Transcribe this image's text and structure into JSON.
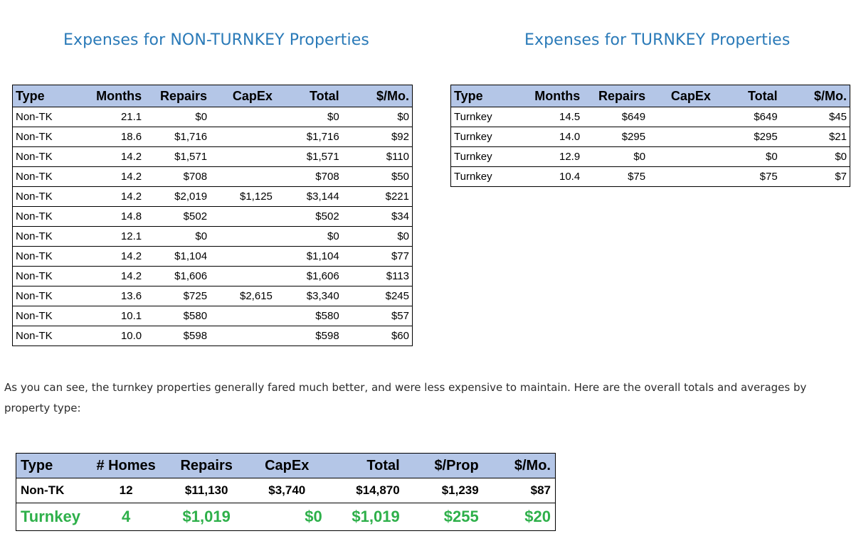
{
  "non_turnkey": {
    "heading": "Expenses for NON-TURNKEY Properties",
    "columns": [
      "Type",
      "Months",
      "Repairs",
      "CapEx",
      "Total",
      "$/Mo."
    ],
    "rows": [
      [
        "Non-TK",
        "21.1",
        "$0",
        "",
        "$0",
        "$0"
      ],
      [
        "Non-TK",
        "18.6",
        "$1,716",
        "",
        "$1,716",
        "$92"
      ],
      [
        "Non-TK",
        "14.2",
        "$1,571",
        "",
        "$1,571",
        "$110"
      ],
      [
        "Non-TK",
        "14.2",
        "$708",
        "",
        "$708",
        "$50"
      ],
      [
        "Non-TK",
        "14.2",
        "$2,019",
        "$1,125",
        "$3,144",
        "$221"
      ],
      [
        "Non-TK",
        "14.8",
        "$502",
        "",
        "$502",
        "$34"
      ],
      [
        "Non-TK",
        "12.1",
        "$0",
        "",
        "$0",
        "$0"
      ],
      [
        "Non-TK",
        "14.2",
        "$1,104",
        "",
        "$1,104",
        "$77"
      ],
      [
        "Non-TK",
        "14.2",
        "$1,606",
        "",
        "$1,606",
        "$113"
      ],
      [
        "Non-TK",
        "13.6",
        "$725",
        "$2,615",
        "$3,340",
        "$245"
      ],
      [
        "Non-TK",
        "10.1",
        "$580",
        "",
        "$580",
        "$57"
      ],
      [
        "Non-TK",
        "10.0",
        "$598",
        "",
        "$598",
        "$60"
      ]
    ]
  },
  "turnkey": {
    "heading": "Expenses for TURNKEY Properties",
    "columns": [
      "Type",
      "Months",
      "Repairs",
      "CapEx",
      "Total",
      "$/Mo."
    ],
    "rows": [
      [
        "Turnkey",
        "14.5",
        "$649",
        "",
        "$649",
        "$45"
      ],
      [
        "Turnkey",
        "14.0",
        "$295",
        "",
        "$295",
        "$21"
      ],
      [
        "Turnkey",
        "12.9",
        "$0",
        "",
        "$0",
        "$0"
      ],
      [
        "Turnkey",
        "10.4",
        "$75",
        "",
        "$75",
        "$7"
      ]
    ]
  },
  "paragraph": "As you can see, the turnkey properties generally fared much better, and were less expensive to maintain. Here are the overall totals and averages by property type:",
  "summary": {
    "columns": [
      "Type",
      "# Homes",
      "Repairs",
      "CapEx",
      "Total",
      "$/Prop",
      "$/Mo."
    ],
    "rows": [
      [
        "Non-TK",
        "12",
        "$11,130",
        "$3,740",
        "$14,870",
        "$1,239",
        "$87"
      ],
      [
        "Turnkey",
        "4",
        "$1,019",
        "$0",
        "$1,019",
        "$255",
        "$20"
      ]
    ]
  },
  "colors": {
    "heading": "#2a7ab8",
    "header_fill": "#b4c6e7",
    "turnkey_highlight": "#2eb04a"
  }
}
